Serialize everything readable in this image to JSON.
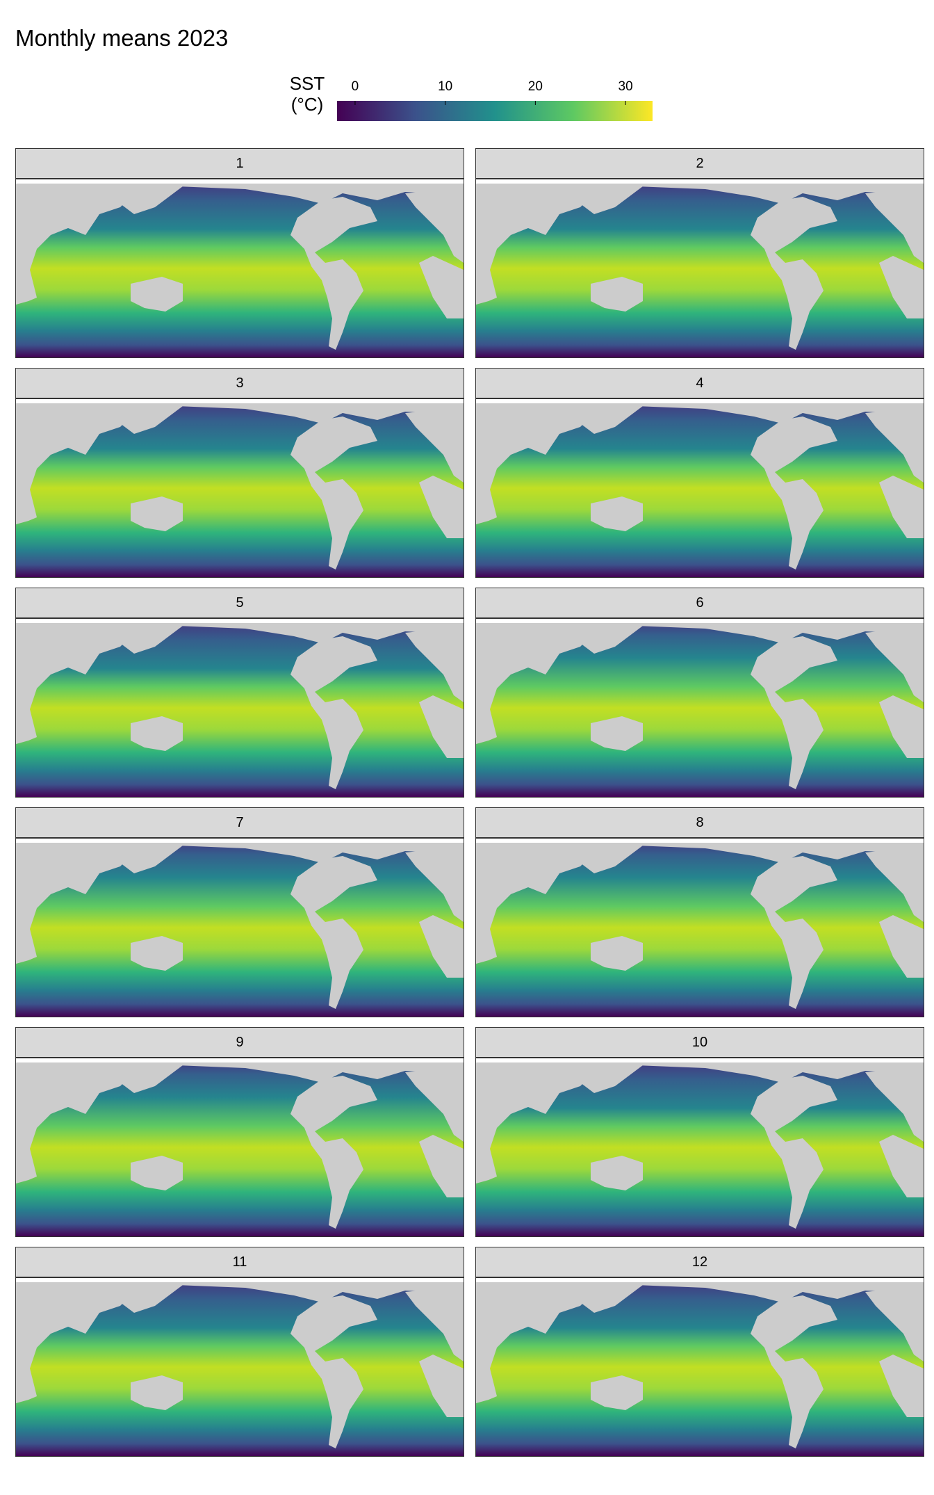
{
  "title": "Monthly means 2023",
  "legend": {
    "label_line1": "SST",
    "label_line2": "(°C)",
    "ticks": [
      {
        "label": "0",
        "value": 0
      },
      {
        "label": "10",
        "value": 10
      },
      {
        "label": "20",
        "value": 20
      },
      {
        "label": "30",
        "value": 30
      }
    ],
    "range": [
      -2,
      33
    ],
    "colormap": "viridis",
    "colors": [
      "#440154",
      "#3b528b",
      "#21918c",
      "#5ec962",
      "#fde725"
    ]
  },
  "land_color": "#cccccc",
  "panels": [
    {
      "label": "1"
    },
    {
      "label": "2"
    },
    {
      "label": "3"
    },
    {
      "label": "4"
    },
    {
      "label": "5"
    },
    {
      "label": "6"
    },
    {
      "label": "7"
    },
    {
      "label": "8"
    },
    {
      "label": "9"
    },
    {
      "label": "10"
    },
    {
      "label": "11"
    },
    {
      "label": "12"
    }
  ]
}
